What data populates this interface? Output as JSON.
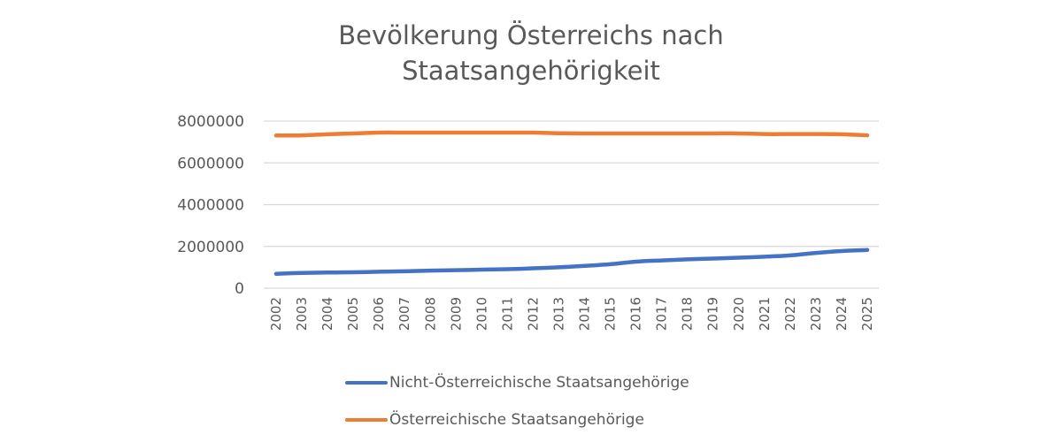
{
  "chart_data": {
    "type": "line",
    "title": "Bevölkerung Österreichs nach Staatsangehörigkeit",
    "title_lines": [
      "Bevölkerung Österreichs nach",
      "Staatsangehörigkeit"
    ],
    "xlabel": "",
    "ylabel": "",
    "ylim": [
      0,
      8000000
    ],
    "yticks": [
      "0",
      "2000000",
      "4000000",
      "6000000",
      "8000000"
    ],
    "grid": true,
    "legend_position": "bottom",
    "categories": [
      "2002",
      "2003",
      "2004",
      "2005",
      "2006",
      "2007",
      "2008",
      "2009",
      "2010",
      "2011",
      "2012",
      "2013",
      "2014",
      "2015",
      "2016",
      "2017",
      "2018",
      "2019",
      "2020",
      "2021",
      "2022",
      "2023",
      "2024",
      "2025"
    ],
    "series": [
      {
        "name": "Nicht-Österreichische Staatsangehörige",
        "color": "#4472C4",
        "values": [
          690000,
          730000,
          750000,
          760000,
          790000,
          810000,
          840000,
          860000,
          890000,
          910000,
          950000,
          1000000,
          1070000,
          1150000,
          1270000,
          1330000,
          1380000,
          1420000,
          1460000,
          1510000,
          1570000,
          1690000,
          1780000,
          1830000
        ]
      },
      {
        "name": "Österreichische Staatsangehörige",
        "color": "#ED7D31",
        "values": [
          7310000,
          7320000,
          7370000,
          7410000,
          7450000,
          7450000,
          7450000,
          7450000,
          7450000,
          7450000,
          7450000,
          7420000,
          7410000,
          7410000,
          7410000,
          7410000,
          7410000,
          7410000,
          7410000,
          7380000,
          7380000,
          7380000,
          7370000,
          7320000
        ]
      }
    ]
  }
}
